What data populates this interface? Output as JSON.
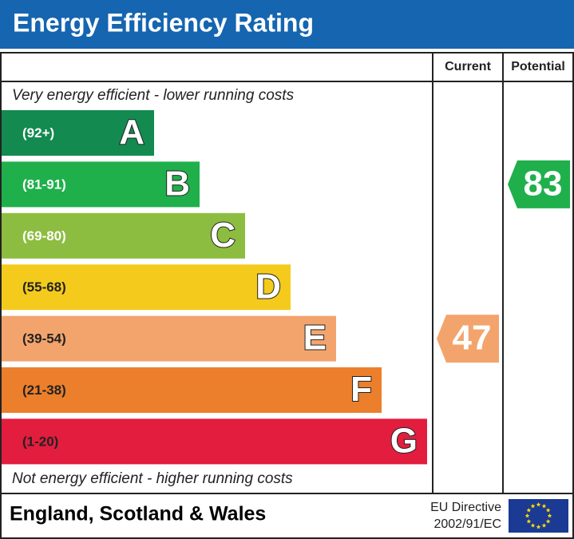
{
  "title": "Energy Efficiency Rating",
  "columns": {
    "current": "Current",
    "potential": "Potential"
  },
  "top_note": "Very energy efficient - lower running costs",
  "bottom_note": "Not energy efficient - higher running costs",
  "bands": [
    {
      "range": "(92+)",
      "letter": "A",
      "color": "#128a50"
    },
    {
      "range": "(81-91)",
      "letter": "B",
      "color": "#1fb04b"
    },
    {
      "range": "(69-80)",
      "letter": "C",
      "color": "#8dbd40"
    },
    {
      "range": "(55-68)",
      "letter": "D",
      "color": "#f4cb1c"
    },
    {
      "range": "(39-54)",
      "letter": "E",
      "color": "#f3a46c"
    },
    {
      "range": "(21-38)",
      "letter": "F",
      "color": "#ec7f2b"
    },
    {
      "range": "(1-20)",
      "letter": "G",
      "color": "#e21d3e"
    }
  ],
  "current": {
    "value": 47
  },
  "potential": {
    "value": 83
  },
  "footer": {
    "region": "England, Scotland & Wales",
    "directive_line1": "EU Directive",
    "directive_line2": "2002/91/EC"
  }
}
